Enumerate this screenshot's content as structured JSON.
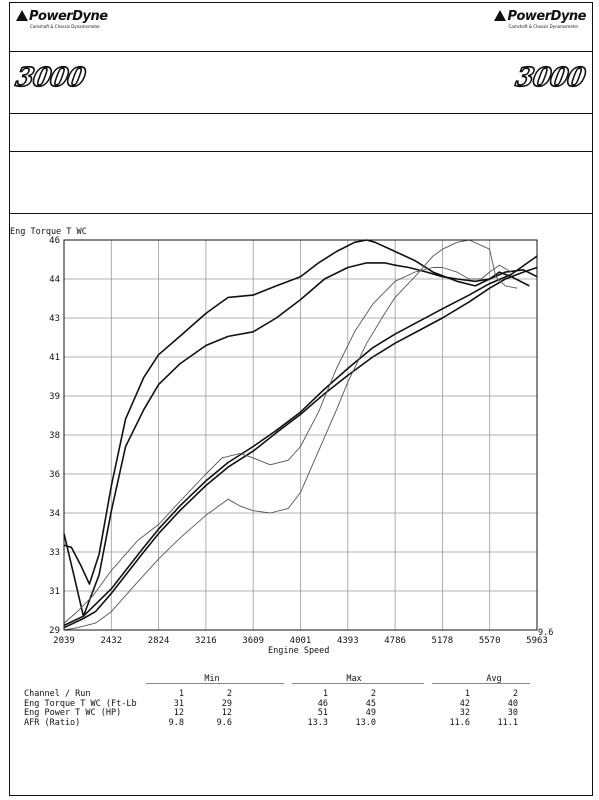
{
  "header": {
    "brand_left": "PowerDyne",
    "brand_right": "PowerDyne",
    "brand_tag": "Camshaft & Chassis Dynamometer",
    "model_left": "3000",
    "model_right": "3000"
  },
  "colors": {
    "ink": "#111111",
    "grid": "#9a9a9a",
    "thin": "#555555"
  },
  "chart_data": {
    "type": "line",
    "ylabel": "Eng Torque T WC",
    "xlabel": "Engine Speed",
    "corner_value": "9.6",
    "xlim": [
      2039,
      5963
    ],
    "ylim": [
      29,
      46
    ],
    "x_ticks": [
      "2039",
      "2432",
      "2824",
      "3216",
      "3609",
      "4001",
      "4393",
      "4786",
      "5178",
      "5570",
      "5963"
    ],
    "y_ticks": [
      "29",
      "31",
      "33",
      "34",
      "36",
      "38",
      "39",
      "41",
      "43",
      "44",
      "46"
    ],
    "grid": true,
    "series": [
      {
        "style": "thick",
        "x": [
          2039,
          2100,
          2180,
          2250,
          2330,
          2432,
          2550,
          2700,
          2824,
          3000,
          3216,
          3400,
          3609,
          3800,
          4001,
          4150,
          4300,
          4450,
          4550,
          4620,
          4786,
          4950,
          5100,
          5300,
          5450,
          5570,
          5650,
          5750,
          5900
        ],
        "y": [
          32.7,
          32.6,
          31.8,
          31.0,
          32.3,
          35.3,
          38.2,
          40.0,
          41.0,
          41.8,
          42.8,
          43.5,
          43.6,
          44.0,
          44.4,
          45.0,
          45.5,
          45.9,
          46.0,
          45.9,
          45.5,
          45.1,
          44.6,
          44.2,
          44.0,
          44.3,
          44.6,
          44.4,
          44.0
        ]
      },
      {
        "style": "thick",
        "x": [
          2039,
          2120,
          2200,
          2330,
          2432,
          2550,
          2700,
          2824,
          3000,
          3216,
          3400,
          3609,
          3800,
          4001,
          4200,
          4393,
          4550,
          4700,
          4786,
          4900,
          5050,
          5178,
          5300,
          5450,
          5570,
          5700,
          5850,
          5963
        ],
        "y": [
          33.2,
          31.4,
          29.6,
          31.4,
          34.2,
          37.0,
          38.6,
          39.7,
          40.6,
          41.4,
          41.8,
          42.0,
          42.6,
          43.4,
          44.3,
          44.8,
          45.0,
          45.0,
          44.9,
          44.8,
          44.6,
          44.4,
          44.3,
          44.2,
          44.3,
          44.6,
          44.7,
          44.4
        ]
      },
      {
        "style": "thick",
        "x": [
          2039,
          2200,
          2432,
          2700,
          2824,
          3000,
          3216,
          3400,
          3609,
          3800,
          4001,
          4200,
          4393,
          4600,
          4786,
          5000,
          5178,
          5400,
          5570,
          5750,
          5963
        ],
        "y": [
          29.2,
          29.6,
          30.8,
          32.6,
          33.4,
          34.4,
          35.5,
          36.3,
          37.0,
          37.7,
          38.5,
          39.5,
          40.4,
          41.3,
          41.9,
          42.5,
          43.0,
          43.6,
          44.1,
          44.5,
          45.3
        ]
      },
      {
        "style": "thick",
        "x": [
          2039,
          2200,
          2300,
          2432,
          2700,
          2824,
          3000,
          3216,
          3400,
          3609,
          3800,
          4001,
          4200,
          4393,
          4600,
          4786,
          5000,
          5178,
          5400,
          5570,
          5700,
          5850,
          5963
        ],
        "y": [
          29.1,
          29.5,
          29.8,
          30.6,
          32.4,
          33.2,
          34.2,
          35.3,
          36.1,
          36.8,
          37.6,
          38.4,
          39.3,
          40.1,
          40.9,
          41.5,
          42.1,
          42.6,
          43.3,
          43.9,
          44.3,
          44.6,
          44.8
        ]
      },
      {
        "style": "thin",
        "x": [
          2039,
          2150,
          2280,
          2432,
          2650,
          2824,
          3000,
          3216,
          3350,
          3500,
          3609,
          3750,
          3900,
          4001,
          4150,
          4300,
          4450,
          4600,
          4786,
          4950,
          5100,
          5178,
          5300,
          5400,
          5500,
          5570,
          5650,
          5750
        ],
        "y": [
          29.3,
          29.8,
          30.5,
          31.6,
          32.9,
          33.6,
          34.6,
          35.8,
          36.5,
          36.7,
          36.5,
          36.2,
          36.4,
          37.0,
          38.5,
          40.4,
          42.0,
          43.2,
          44.2,
          44.6,
          44.8,
          44.8,
          44.6,
          44.3,
          44.3,
          44.6,
          44.9,
          44.6
        ]
      },
      {
        "style": "thin",
        "x": [
          2039,
          2150,
          2300,
          2432,
          2600,
          2824,
          3000,
          3216,
          3400,
          3500,
          3609,
          3750,
          3900,
          4001,
          4150,
          4300,
          4393,
          4550,
          4700,
          4786,
          4950,
          5100,
          5178,
          5300,
          5400,
          5570,
          5620,
          5700,
          5800
        ],
        "y": [
          29.0,
          29.1,
          29.3,
          29.8,
          30.8,
          32.1,
          33.0,
          34.0,
          34.7,
          34.4,
          34.2,
          34.1,
          34.3,
          35.0,
          36.8,
          38.6,
          39.8,
          41.5,
          42.8,
          43.5,
          44.4,
          45.3,
          45.6,
          45.9,
          46.0,
          45.6,
          44.4,
          44.0,
          43.9
        ]
      }
    ]
  },
  "summary": {
    "groups": [
      "Min",
      "Max",
      "Avg"
    ],
    "rows": [
      {
        "label": "Channel / Run",
        "values": [
          "1",
          "2",
          "1",
          "2",
          "1",
          "2"
        ]
      },
      {
        "label": "Eng Torque T WC (Ft-Lb",
        "values": [
          "31",
          "29",
          "46",
          "45",
          "42",
          "40"
        ]
      },
      {
        "label": "Eng Power T WC (HP)",
        "values": [
          "12",
          "12",
          "51",
          "49",
          "32",
          "30"
        ]
      },
      {
        "label": "AFR (Ratio)",
        "values": [
          "9.8",
          "9.6",
          "13.3",
          "13.0",
          "11.6",
          "11.1"
        ]
      }
    ]
  }
}
